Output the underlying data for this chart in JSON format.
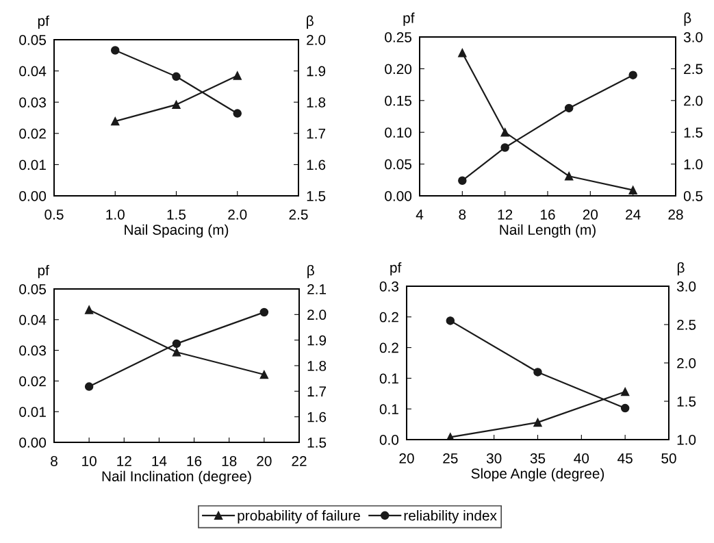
{
  "chart_data": [
    {
      "type": "line",
      "xlabel": "Nail Spacing (m)",
      "ylabel": "pf",
      "y2label": "β",
      "x": [
        1.0,
        1.5,
        2.0
      ],
      "xlim": [
        0.5,
        2.5
      ],
      "xticks": [
        {
          "value": 0.5,
          "label": "0.5"
        },
        {
          "value": 1.0,
          "label": "1.0"
        },
        {
          "value": 1.5,
          "label": "1.5"
        },
        {
          "value": 2.0,
          "label": "2.0"
        },
        {
          "value": 2.5,
          "label": "2.5"
        }
      ],
      "ylim": [
        0,
        0.05
      ],
      "yticks": [
        {
          "value": 0,
          "label": "0.00"
        },
        {
          "value": 0.01,
          "label": "0.01"
        },
        {
          "value": 0.02,
          "label": "0.02"
        },
        {
          "value": 0.03,
          "label": "0.03"
        },
        {
          "value": 0.04,
          "label": "0.04"
        },
        {
          "value": 0.05,
          "label": "0.05"
        }
      ],
      "y2lim": [
        1.5,
        2.0
      ],
      "y2ticks": [
        1.5,
        1.6,
        1.7,
        1.8,
        1.9,
        {
          "value": 2.0,
          "label": "2.0"
        }
      ],
      "legend": "bottom",
      "series": [
        {
          "name": "probability of failure",
          "color": "#1a1a1a",
          "marker": "triangle",
          "values": [
            0.0239,
            0.0292,
            0.0385
          ]
        },
        {
          "name": "reliability index",
          "color": "#1a1a1a",
          "marker": "circle",
          "axis": "y2",
          "values": [
            1.966,
            1.882,
            1.764
          ]
        }
      ]
    },
    {
      "type": "line",
      "xlabel": "Nail Length (m)",
      "ylabel": "pf",
      "y2label": "β",
      "x": [
        8,
        12,
        18,
        24
      ],
      "xlim": [
        4,
        28
      ],
      "xticks": [
        4,
        8,
        12,
        16,
        20,
        24,
        28
      ],
      "ylim": [
        0,
        0.25
      ],
      "yticks": [
        {
          "value": 0,
          "label": "0.00"
        },
        {
          "value": 0.05,
          "label": "0.05"
        },
        {
          "value": 0.1,
          "label": "0.10"
        },
        {
          "value": 0.15,
          "label": "0.15"
        },
        {
          "value": 0.2,
          "label": "0.20"
        },
        {
          "value": 0.25,
          "label": "0.25"
        }
      ],
      "y2lim": [
        0.5,
        3.0
      ],
      "y2ticks": [
        0.5,
        {
          "value": 1.0,
          "label": "1.0"
        },
        1.5,
        {
          "value": 2.0,
          "label": "2.0"
        },
        2.5,
        {
          "value": 3.0,
          "label": "3.0"
        }
      ],
      "series": [
        {
          "color": "#1a1a1a",
          "marker": "triangle",
          "values": [
            0.225,
            0.1,
            0.031,
            0.009
          ]
        },
        {
          "color": "#1a1a1a",
          "marker": "circle",
          "axis": "y2",
          "values": [
            0.74,
            1.26,
            1.88,
            2.4
          ]
        }
      ]
    },
    {
      "type": "line",
      "xlabel": "Nail Inclination (degree)",
      "ylabel": "pf",
      "y2label": "β",
      "x": [
        10,
        15,
        20
      ],
      "xlim": [
        8,
        22
      ],
      "xticks": [
        8,
        10,
        12,
        14,
        16,
        18,
        20,
        22
      ],
      "ylim": [
        0,
        0.05
      ],
      "yticks": [
        {
          "value": 0,
          "label": "0.00"
        },
        {
          "value": 0.01,
          "label": "0.01"
        },
        {
          "value": 0.02,
          "label": "0.02"
        },
        {
          "value": 0.03,
          "label": "0.03"
        },
        {
          "value": 0.04,
          "label": "0.04"
        },
        {
          "value": 0.05,
          "label": "0.05"
        }
      ],
      "y2lim": [
        1.5,
        2.1
      ],
      "y2ticks": [
        1.5,
        1.6,
        1.7,
        1.8,
        1.9,
        {
          "value": 2.0,
          "label": "2.0"
        },
        2.1
      ],
      "series": [
        {
          "color": "#1a1a1a",
          "marker": "triangle",
          "values": [
            0.0432,
            0.0294,
            0.0221
          ]
        },
        {
          "color": "#1a1a1a",
          "marker": "circle",
          "axis": "y2",
          "values": [
            1.718,
            1.886,
            2.009
          ]
        }
      ]
    },
    {
      "type": "line",
      "xlabel": "Slope Angle (degree)",
      "ylabel": "pf",
      "y2label": "β",
      "x": [
        25,
        35,
        45
      ],
      "xlim": [
        20,
        50
      ],
      "xticks": [
        20,
        25,
        30,
        35,
        40,
        45,
        50
      ],
      "ylim": [
        0,
        0.25
      ],
      "yticks": [
        {
          "value": 0,
          "label": "0.0"
        },
        {
          "value": 0.05,
          "label": "0.1"
        },
        {
          "value": 0.1,
          "label": "0.1"
        },
        {
          "value": 0.15,
          "label": "0.2"
        },
        {
          "value": 0.2,
          "label": "0.2"
        },
        {
          "value": 0.25,
          "label": "0.3"
        }
      ],
      "y2lim": [
        1.0,
        3.0
      ],
      "y2ticks": [
        {
          "value": 1.0,
          "label": "1.0"
        },
        1.5,
        {
          "value": 2.0,
          "label": "2.0"
        },
        2.5,
        {
          "value": 3.0,
          "label": "3.0"
        }
      ],
      "series": [
        {
          "color": "#1a1a1a",
          "marker": "triangle",
          "values": [
            0.004,
            0.028,
            0.078
          ]
        },
        {
          "color": "#1a1a1a",
          "marker": "circle",
          "axis": "y2",
          "values": [
            2.55,
            1.88,
            1.41
          ]
        }
      ]
    }
  ]
}
